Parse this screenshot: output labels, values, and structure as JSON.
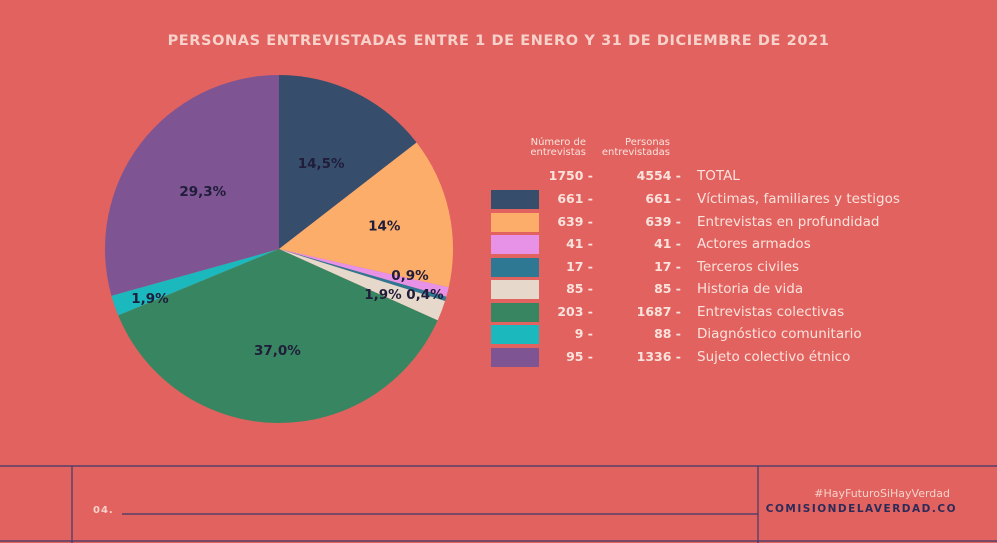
{
  "header": {
    "title": "PERSONAS ENTREVISTADAS ENTRE 1 DE ENERO Y 31 DE DICIEMBRE DE 2021"
  },
  "table": {
    "col1_header": [
      "Número de",
      "entrevistas"
    ],
    "col2_header": [
      "Personas",
      "entrevistadas"
    ],
    "total": {
      "entrevistas": "1750 -",
      "personas": "4554 -",
      "label": "TOTAL"
    },
    "rows": [
      {
        "entrevistas": "661 -",
        "personas": "661 -",
        "label": "Víctimas, familiares y testigos",
        "color": "#364e6c"
      },
      {
        "entrevistas": "639 -",
        "personas": "639 -",
        "label": "Entrevistas en profundidad",
        "color": "#fdad6a"
      },
      {
        "entrevistas": "41 -",
        "personas": "41 -",
        "label": "Actores armados",
        "color": "#e792e6"
      },
      {
        "entrevistas": "17 -",
        "personas": "17 -",
        "label": "Terceros civiles",
        "color": "#2f7893"
      },
      {
        "entrevistas": "85 -",
        "personas": "85 -",
        "label": "Historia de vida",
        "color": "#e6d9cb"
      },
      {
        "entrevistas": "203 -",
        "personas": "1687 -",
        "label": "Entrevistas colectivas",
        "color": "#388661"
      },
      {
        "entrevistas": "9 -",
        "personas": "88 -",
        "label": "Diagnóstico comunitario",
        "color": "#1bb8bd"
      },
      {
        "entrevistas": "95 -",
        "personas": "1336 -",
        "label": "Sujeto colectivo étnico",
        "color": "#7e5592"
      }
    ]
  },
  "chart_data": {
    "type": "pie",
    "title": "PERSONAS ENTREVISTADAS ENTRE 1 DE ENERO Y 31 DE DICIEMBRE DE 2021",
    "slices": [
      {
        "category": "Víctimas, familiares y testigos",
        "value": 14.5,
        "label": "14,5%",
        "color": "#364e6c"
      },
      {
        "category": "Entrevistas en profundidad",
        "value": 14.0,
        "label": "14%",
        "color": "#fdad6a"
      },
      {
        "category": "Actores armados",
        "value": 0.9,
        "label": "0,9%",
        "color": "#e792e6"
      },
      {
        "category": "Terceros civiles",
        "value": 0.4,
        "label": "0,4%",
        "color": "#2f7893"
      },
      {
        "category": "Historia de vida",
        "value": 1.9,
        "label": "1,9%",
        "color": "#e6d9cb"
      },
      {
        "category": "Entrevistas colectivas",
        "value": 37.0,
        "label": "37,0%",
        "color": "#388661"
      },
      {
        "category": "Diagnóstico comunitario",
        "value": 1.9,
        "label": "1,9%",
        "color": "#1bb8bd"
      },
      {
        "category": "Sujeto colectivo étnico",
        "value": 29.3,
        "label": "29,3%",
        "color": "#7e5592"
      }
    ],
    "legend_placement": "right"
  },
  "footer": {
    "page": "04.",
    "hashtag": "#HayFuturoSiHayVerdad",
    "site": "COMISIONDELAVERDAD.CO"
  }
}
